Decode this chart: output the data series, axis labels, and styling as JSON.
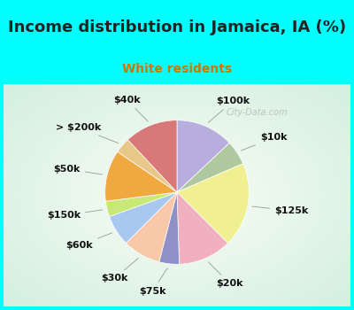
{
  "title": "Income distribution in Jamaica, IA (%)",
  "subtitle": "White residents",
  "bg_cyan": "#00ffff",
  "bg_chart_color1": "#e8f5f0",
  "bg_chart_color2": "#d0eed8",
  "labels": [
    "$100k",
    "$10k",
    "$125k",
    "$20k",
    "$75k",
    "$30k",
    "$60k",
    "$150k",
    "$50k",
    "> $200k",
    "$40k"
  ],
  "sizes": [
    13.0,
    5.5,
    19.0,
    12.0,
    4.5,
    8.5,
    7.0,
    3.5,
    11.5,
    3.5,
    12.0
  ],
  "colors": [
    "#b8aedd",
    "#b0c8a0",
    "#f0f090",
    "#f0b0c0",
    "#9090c8",
    "#f8c8a8",
    "#a8c8f0",
    "#c8e878",
    "#f0a840",
    "#e8c888",
    "#d87878"
  ],
  "startangle": 90,
  "title_fontsize": 13,
  "subtitle_fontsize": 10,
  "label_fontsize": 8,
  "watermark": "City-Data.com",
  "title_color": "#222222",
  "subtitle_color": "#cc7700"
}
